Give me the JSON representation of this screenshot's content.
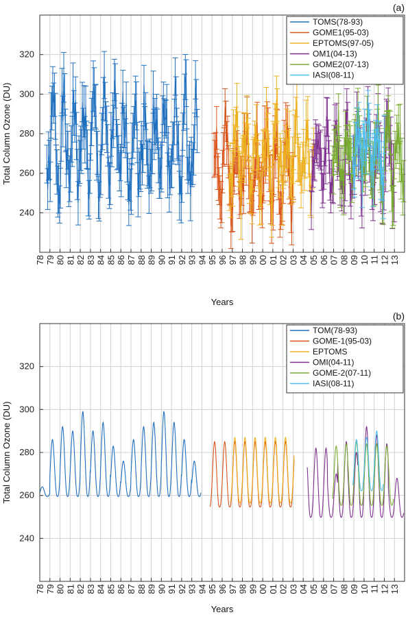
{
  "chart_data": [
    {
      "type": "line",
      "panel_label": "(a)",
      "xlabel": "Years",
      "ylabel": "Total Column Ozone (DU)",
      "ylim": [
        220,
        340
      ],
      "yticks": [
        240,
        260,
        280,
        300,
        320
      ],
      "xlim": [
        1978,
        2014
      ],
      "xticks": [
        "78",
        "79",
        "80",
        "81",
        "82",
        "83",
        "84",
        "85",
        "86",
        "87",
        "88",
        "89",
        "90",
        "91",
        "92",
        "93",
        "94",
        "95",
        "96",
        "97",
        "98",
        "99",
        "00",
        "01",
        "02",
        "03",
        "04",
        "05",
        "06",
        "07",
        "08",
        "09",
        "10",
        "11",
        "12",
        "13"
      ],
      "grid": true,
      "legend_position": "top-right",
      "error_bars": true,
      "series": [
        {
          "name": "TOMS(78-93)",
          "color": "#1f6fbf",
          "years": [
            1978.7,
            1993.5
          ],
          "mean": 275,
          "amplitude": 20,
          "seed": 1,
          "errs": 9
        },
        {
          "name": "GOME1(95-03)",
          "color": "#d95319",
          "years": [
            1995.2,
            2003.0
          ],
          "mean": 262,
          "amplitude": 18,
          "seed": 2,
          "errs": 8
        },
        {
          "name": "EPTOMS(97-05)",
          "color": "#edb120",
          "years": [
            1996.7,
            2005.0
          ],
          "mean": 268,
          "amplitude": 16,
          "seed": 3,
          "errs": 8
        },
        {
          "name": "OM1(04-13)",
          "color": "#7e2f8e",
          "years": [
            2004.8,
            2013.0
          ],
          "mean": 268,
          "amplitude": 14,
          "seed": 4,
          "errs": 7
        },
        {
          "name": "GOME2(07-13)",
          "color": "#77ac30",
          "years": [
            2006.9,
            2013.9
          ],
          "mean": 268,
          "amplitude": 14,
          "seed": 5,
          "errs": 7
        },
        {
          "name": "IASI(08-11)",
          "color": "#4dbeee",
          "years": [
            2008.9,
            2012.0
          ],
          "mean": 272,
          "amplitude": 10,
          "seed": 6,
          "errs": 7
        }
      ]
    },
    {
      "type": "line",
      "panel_label": "(b)",
      "xlabel": "Years",
      "ylabel": "Total Column Ozone  (DU)",
      "ylim": [
        220,
        340
      ],
      "yticks": [
        240,
        260,
        280,
        300,
        320
      ],
      "xlim": [
        1978,
        2014
      ],
      "xticks": [
        "78",
        "79",
        "80",
        "81",
        "82",
        "83",
        "84",
        "85",
        "86",
        "87",
        "88",
        "89",
        "90",
        "91",
        "92",
        "93",
        "94",
        "95",
        "96",
        "97",
        "98",
        "99",
        "00",
        "01",
        "02",
        "03",
        "04",
        "05",
        "06",
        "07",
        "08",
        "09",
        "10",
        "11",
        "12",
        "13"
      ],
      "grid": true,
      "legend_position": "top-right",
      "series": [
        {
          "name": "TOM(78-93)",
          "color": "#1f6fbf",
          "years": [
            1978.0,
            1993.9
          ],
          "mean": 273,
          "amplitude": 15,
          "peaks": [
            264,
            286,
            292,
            290,
            299,
            290,
            294,
            283,
            276,
            286,
            292,
            294,
            299,
            294,
            286,
            276
          ]
        },
        {
          "name": "GOME-1(95-03)",
          "color": "#d95319",
          "years": [
            1994.8,
            2003.1
          ],
          "mean": 269,
          "amplitude": 16,
          "peaks": [
            285,
            285,
            285,
            285,
            285,
            285,
            285,
            285,
            285
          ]
        },
        {
          "name": "EPTOMS",
          "color": "#edb120",
          "years": [
            1996.8,
            2003.1
          ],
          "mean": 270,
          "amplitude": 15,
          "peaks": [
            287,
            287,
            287,
            287,
            287,
            287,
            287
          ]
        },
        {
          "name": "OMI(04-11)",
          "color": "#7e2f8e",
          "years": [
            2004.4,
            2013.9
          ],
          "mean": 266,
          "amplitude": 18,
          "peaks": [
            282,
            282,
            270,
            285,
            280,
            292,
            288,
            284,
            268
          ]
        },
        {
          "name": "GOME-2(07-11)",
          "color": "#77ac30",
          "years": [
            2006.9,
            2012.9
          ],
          "mean": 268,
          "amplitude": 14,
          "peaks": [
            283,
            284,
            285,
            284,
            284,
            283
          ]
        },
        {
          "name": "IASI(08-11)",
          "color": "#4dbeee",
          "years": [
            2008.9,
            2011.9
          ],
          "mean": 273,
          "amplitude": 12,
          "peaks": [
            286,
            287,
            290
          ]
        }
      ]
    }
  ]
}
